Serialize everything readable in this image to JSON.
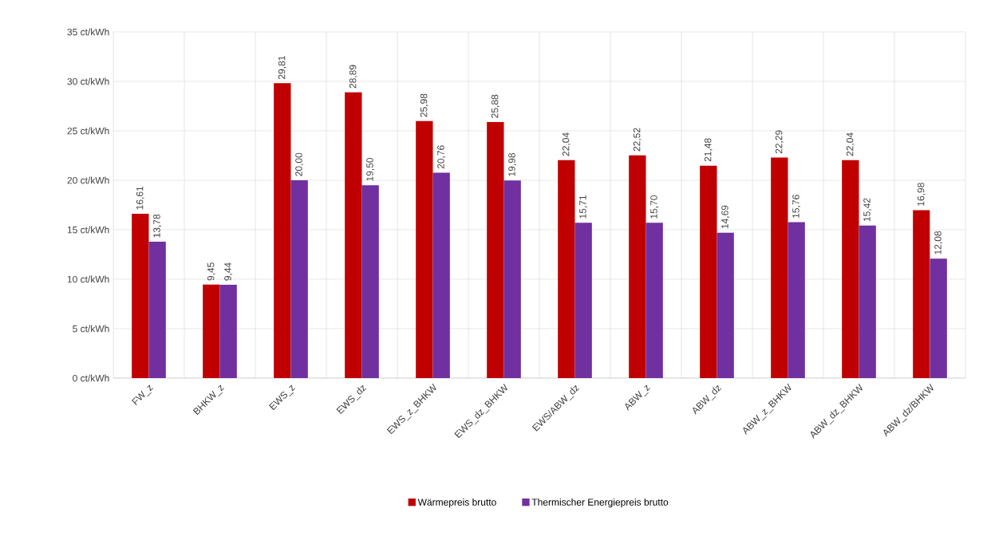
{
  "chart_data": {
    "type": "bar",
    "categories": [
      "FW_z",
      "BHKW_z",
      "EWS_z",
      "EWS_dz",
      "EWS_z_BHKW",
      "EWS_dz_BHKW",
      "EWS/ABW_dz",
      "ABW_z",
      "ABW_dz",
      "ABW_z_BHKW",
      "ABW_dz_BHKW",
      "ABW_dz/BHKW"
    ],
    "series": [
      {
        "name": "Wärmepreis brutto",
        "color": "#c00000",
        "values": [
          16.61,
          9.45,
          29.81,
          28.89,
          25.98,
          25.88,
          22.04,
          22.52,
          21.48,
          22.29,
          22.04,
          16.98
        ],
        "value_labels": [
          "16,61",
          "9,45",
          "29,81",
          "28,89",
          "25,98",
          "25,88",
          "22,04",
          "22,52",
          "21,48",
          "22,29",
          "22,04",
          "16,98"
        ]
      },
      {
        "name": "Thermischer Energiepreis brutto",
        "color": "#7030a0",
        "values": [
          13.78,
          9.44,
          20.0,
          19.5,
          20.76,
          19.98,
          15.71,
          15.7,
          14.69,
          15.76,
          15.42,
          12.08
        ],
        "value_labels": [
          "13,78",
          "9,44",
          "20,00",
          "19,50",
          "20,76",
          "19,98",
          "15,71",
          "15,70",
          "14,69",
          "15,76",
          "15,42",
          "12,08"
        ]
      }
    ],
    "ylim": [
      0,
      35
    ],
    "yticks": [
      {
        "value": 0,
        "label": "0 ct/kWh"
      },
      {
        "value": 5,
        "label": "5 ct/kWh"
      },
      {
        "value": 10,
        "label": "10 ct/kWh"
      },
      {
        "value": 15,
        "label": "15 ct/kWh"
      },
      {
        "value": 20,
        "label": "20 ct/kWh"
      },
      {
        "value": 25,
        "label": "25 ct/kWh"
      },
      {
        "value": 30,
        "label": "30 ct/kWh"
      },
      {
        "value": 35,
        "label": "35 ct/kWh"
      }
    ],
    "grid": true,
    "legend": "bottom"
  }
}
